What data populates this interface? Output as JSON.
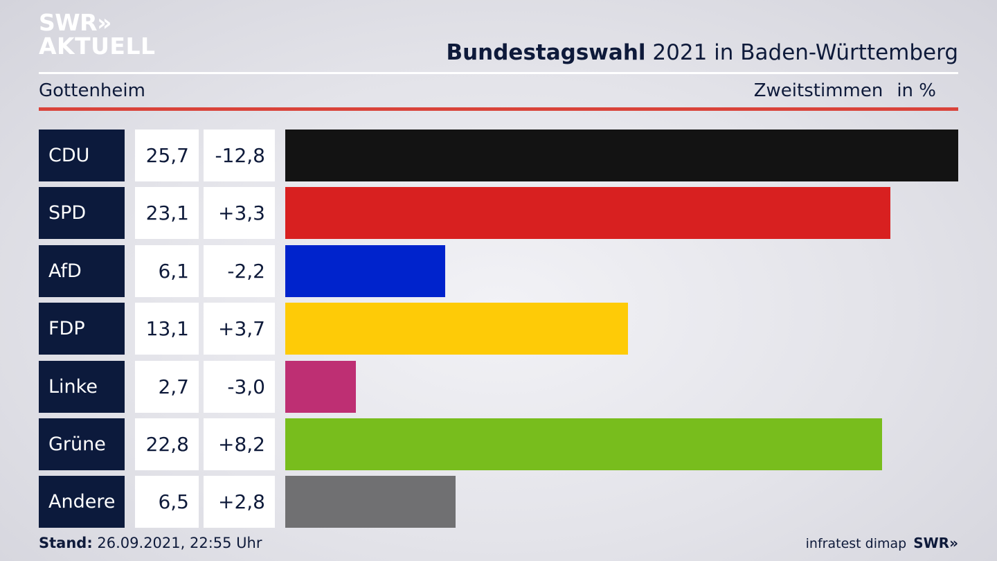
{
  "logo": {
    "line1": "SWR»",
    "line2": "AKTUELL"
  },
  "header": {
    "title_bold": "Bundestagswahl",
    "title_rest": " 2021 in Baden-Württemberg",
    "place": "Gottenheim",
    "measure": "Zweitstimmen",
    "unit": "in %"
  },
  "chart_data": {
    "type": "bar",
    "categories": [
      "CDU",
      "SPD",
      "AfD",
      "FDP",
      "Linke",
      "Grüne",
      "Andere"
    ],
    "series": [
      {
        "values": [
          25.7,
          23.1,
          6.1,
          13.1,
          2.7,
          22.8,
          6.5
        ]
      }
    ],
    "value_labels": [
      "25,7",
      "23,1",
      "6,1",
      "13,1",
      "2,7",
      "22,8",
      "6,5"
    ],
    "change_labels": [
      "-12,8",
      "+3,3",
      "-2,2",
      "+3,7",
      "-3,0",
      "+8,2",
      "+2,8"
    ],
    "changes": [
      -12.8,
      3.3,
      -2.2,
      3.7,
      -3.0,
      8.2,
      2.8
    ],
    "colors": [
      "#131313",
      "#d82020",
      "#0023cc",
      "#fecb07",
      "#be2f73",
      "#78bd1d",
      "#707072"
    ],
    "xlim": [
      0,
      25.7
    ],
    "orientation": "horizontal"
  },
  "footer": {
    "stand_label": "Stand:",
    "stand_value": " 26.09.2021, 22:55 Uhr",
    "source": "infratest dimap",
    "brand": "SWR»"
  }
}
